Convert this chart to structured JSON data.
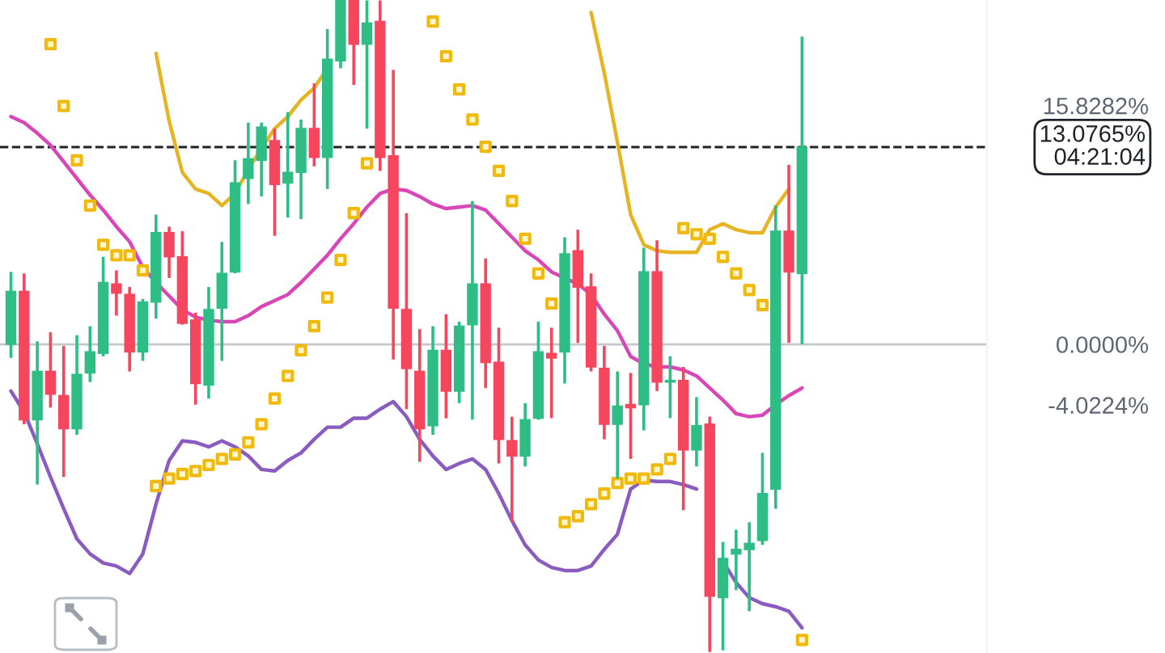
{
  "chart_data": {
    "type": "candlestick",
    "categories": [
      null,
      null,
      null,
      null,
      null,
      null,
      null,
      null,
      null,
      null,
      null,
      null,
      null,
      null,
      null,
      null,
      null,
      null,
      null,
      null,
      null,
      null,
      null,
      null,
      null,
      null,
      null,
      null,
      null,
      null,
      null,
      null,
      null,
      null,
      null,
      null,
      null,
      null,
      null,
      null,
      null,
      null,
      null,
      null,
      null,
      null,
      null,
      null,
      null,
      null,
      null,
      null,
      null,
      null,
      null,
      null,
      null,
      null,
      null,
      null,
      null
    ],
    "ohlc": [
      [
        0.0,
        4.8,
        -0.9,
        3.5
      ],
      [
        3.5,
        4.7,
        -5.3,
        -5.0
      ],
      [
        -5.0,
        0.2,
        -9.3,
        -1.8
      ],
      [
        -1.8,
        0.8,
        -4.2,
        -3.3
      ],
      [
        -3.4,
        -0.1,
        -8.8,
        -5.6
      ],
      [
        -5.6,
        0.6,
        -6.0,
        -2.0
      ],
      [
        -1.9,
        1.2,
        -2.5,
        -0.5
      ],
      [
        -0.6,
        5.8,
        -0.8,
        4.1
      ],
      [
        4.0,
        4.9,
        1.9,
        3.4
      ],
      [
        3.3,
        3.8,
        -1.8,
        -0.5
      ],
      [
        -0.5,
        3.0,
        -1.1,
        2.8
      ],
      [
        2.8,
        8.6,
        1.7,
        7.4
      ],
      [
        7.4,
        7.8,
        4.4,
        5.8
      ],
      [
        5.8,
        7.5,
        1.3,
        1.4
      ],
      [
        1.6,
        2.1,
        -4.0,
        -2.6
      ],
      [
        -2.7,
        3.8,
        -3.6,
        2.3
      ],
      [
        2.4,
        6.8,
        -1.1,
        4.7
      ],
      [
        4.8,
        12.2,
        4.7,
        10.7
      ],
      [
        11.0,
        14.7,
        9.3,
        12.3
      ],
      [
        12.2,
        14.7,
        9.8,
        14.4
      ],
      [
        13.5,
        14.3,
        7.2,
        10.6
      ],
      [
        10.7,
        15.4,
        8.4,
        11.4
      ],
      [
        11.4,
        14.9,
        8.3,
        14.3
      ],
      [
        14.3,
        17.3,
        11.8,
        12.4
      ],
      [
        12.4,
        20.9,
        10.3,
        18.9
      ],
      [
        18.8,
        22.8,
        18.3,
        22.8
      ],
      [
        22.8,
        22.8,
        17.2,
        19.9
      ],
      [
        19.9,
        22.8,
        14.3,
        21.3
      ],
      [
        21.4,
        22.8,
        11.5,
        12.4
      ],
      [
        12.5,
        18.2,
        -1.0,
        2.4
      ],
      [
        2.3,
        8.7,
        -4.3,
        -1.6
      ],
      [
        -1.8,
        1.0,
        -7.8,
        -5.6
      ],
      [
        -5.4,
        1.2,
        -6.0,
        -0.4
      ],
      [
        -0.4,
        2.0,
        -4.9,
        -3.1
      ],
      [
        -3.1,
        1.5,
        -3.9,
        1.2
      ],
      [
        1.3,
        9.5,
        -5.0,
        4.0
      ],
      [
        4.0,
        5.7,
        -2.9,
        -1.2
      ],
      [
        -1.2,
        1.1,
        -7.9,
        -6.3
      ],
      [
        -6.4,
        -4.8,
        -11.8,
        -7.4
      ],
      [
        -7.4,
        -3.9,
        -8.1,
        -5.0
      ],
      [
        -4.9,
        1.5,
        -5.0,
        -0.5
      ],
      [
        -0.6,
        1.1,
        -4.9,
        -0.9
      ],
      [
        -0.5,
        7.1,
        -2.6,
        6.0
      ],
      [
        6.2,
        7.6,
        0.1,
        3.8
      ],
      [
        3.8,
        4.7,
        -1.8,
        -1.5
      ],
      [
        -1.6,
        -0.1,
        -6.3,
        -5.3
      ],
      [
        -5.3,
        -1.8,
        -8.9,
        -4.1
      ],
      [
        -4.0,
        -1.9,
        -7.6,
        -4.2
      ],
      [
        -4.0,
        6.4,
        -5.7,
        4.8
      ],
      [
        4.8,
        6.9,
        -3.1,
        -2.5
      ],
      [
        -2.5,
        -0.8,
        -4.9,
        -2.4
      ],
      [
        -2.4,
        -1.5,
        -11.0,
        -7.0
      ],
      [
        -7.0,
        -3.5,
        -8.1,
        -5.4
      ],
      [
        -5.3,
        -4.8,
        -20.4,
        -16.7
      ],
      [
        -16.8,
        -13.1,
        -20.3,
        -14.2
      ],
      [
        -13.9,
        -12.3,
        -16.3,
        -13.6
      ],
      [
        -13.6,
        -11.8,
        -17.7,
        -13.2
      ],
      [
        -13.0,
        -7.2,
        -13.3,
        -9.9
      ],
      [
        -9.6,
        9.2,
        -10.9,
        7.5
      ],
      [
        7.5,
        11.9,
        0.1,
        4.8
      ],
      [
        4.7,
        20.4,
        0.0,
        13.0765
      ]
    ],
    "series": [
      {
        "type": "line",
        "color": "#e6b422",
        "values": [
          null,
          null,
          null,
          null,
          null,
          null,
          null,
          null,
          null,
          null,
          null,
          19.3,
          14.8,
          11.4,
          10.3,
          10.0,
          9.2,
          10.0,
          11.6,
          13.0,
          14.3,
          15.1,
          16.2,
          17.0,
          18.3,
          null,
          null,
          null,
          null,
          null,
          null,
          null,
          null,
          null,
          null,
          null,
          null,
          null,
          null,
          null,
          null,
          null,
          null,
          null,
          22.0,
          18.0,
          13.4,
          8.6,
          6.6,
          6.2,
          6.1,
          6.1,
          6.1,
          7.6,
          8.0,
          7.6,
          7.4,
          7.4,
          9.1,
          10.3,
          null
        ]
      },
      {
        "type": "line",
        "color": "#d946b8",
        "values": [
          15.1,
          14.7,
          14.0,
          13.2,
          12.1,
          11.0,
          9.9,
          8.9,
          7.8,
          6.8,
          5.1,
          4.1,
          3.2,
          2.3,
          1.8,
          1.6,
          1.5,
          1.5,
          1.9,
          2.5,
          2.9,
          3.3,
          4.1,
          5.0,
          5.9,
          7.0,
          8.0,
          9.1,
          10.0,
          10.3,
          10.2,
          9.8,
          9.3,
          9.0,
          9.1,
          9.2,
          8.9,
          8.0,
          7.1,
          6.2,
          5.6,
          4.8,
          4.4,
          4.0,
          3.3,
          2.0,
          0.9,
          -0.8,
          -1.3,
          -1.5,
          -1.5,
          -1.7,
          -2.1,
          -2.9,
          -3.7,
          -4.6,
          -4.8,
          -4.7,
          -4.0,
          -3.4,
          -2.9
        ]
      },
      {
        "type": "line",
        "color": "#8a5cc2",
        "values": [
          -3.1,
          -4.5,
          -6.6,
          -8.8,
          -10.9,
          -12.9,
          -13.9,
          -14.5,
          -14.7,
          -15.2,
          -13.9,
          -10.6,
          -7.7,
          -6.4,
          -6.5,
          -6.8,
          -6.4,
          -6.8,
          -7.4,
          -8.3,
          -8.4,
          -7.7,
          -7.2,
          -6.3,
          -5.5,
          -5.5,
          -4.9,
          -4.9,
          -4.3,
          -3.8,
          -4.8,
          -6.3,
          -7.4,
          -8.3,
          -7.9,
          -7.6,
          -8.3,
          -9.9,
          -11.7,
          -13.3,
          -14.3,
          -14.8,
          -15.0,
          -15.0,
          -14.7,
          -13.6,
          -12.6,
          -9.6,
          -9.0,
          -9.1,
          -9.1,
          -9.3,
          -9.6,
          null,
          -14.4,
          -15.8,
          -16.8,
          -17.2,
          -17.4,
          -17.7,
          -18.8
        ]
      },
      {
        "type": "scatter",
        "marker": "square",
        "color": "#f0b90b",
        "values": [
          null,
          null,
          null,
          19.9,
          15.8,
          12.2,
          9.2,
          6.6,
          5.9,
          5.9,
          4.9,
          -9.4,
          -8.9,
          -8.6,
          -8.4,
          -8.0,
          -7.6,
          -7.3,
          -6.5,
          -5.3,
          -3.6,
          -2.1,
          -0.4,
          1.2,
          3.1,
          5.6,
          8.7,
          12.0,
          null,
          null,
          null,
          null,
          21.4,
          19.1,
          16.9,
          14.9,
          13.1,
          11.5,
          9.5,
          7.0,
          4.7,
          2.7,
          -11.8,
          -11.4,
          -10.6,
          -9.9,
          -9.2,
          -8.9,
          -8.9,
          -8.3,
          -7.6,
          7.7,
          7.3,
          7.0,
          5.8,
          4.7,
          3.6,
          2.6,
          null,
          null,
          -19.6
        ]
      }
    ],
    "ylim": [
      -20.47,
      22.83
    ],
    "yticks": [
      {
        "value": 15.8282,
        "label": "15.8282%"
      },
      {
        "value": 0,
        "label": "0.0000%"
      },
      {
        "value": -4.0224,
        "label": "-4.0224%"
      }
    ],
    "ref_lines": [
      {
        "axis": "y",
        "value": 0,
        "label": null,
        "color": "#c4c7cc",
        "line_style": "solid"
      },
      {
        "axis": "y",
        "value": 13.0765,
        "label": "13.0765%\n04:21:04",
        "color": "#1e2329",
        "line_style": "dashed"
      }
    ],
    "tick_labels": "y"
  }
}
